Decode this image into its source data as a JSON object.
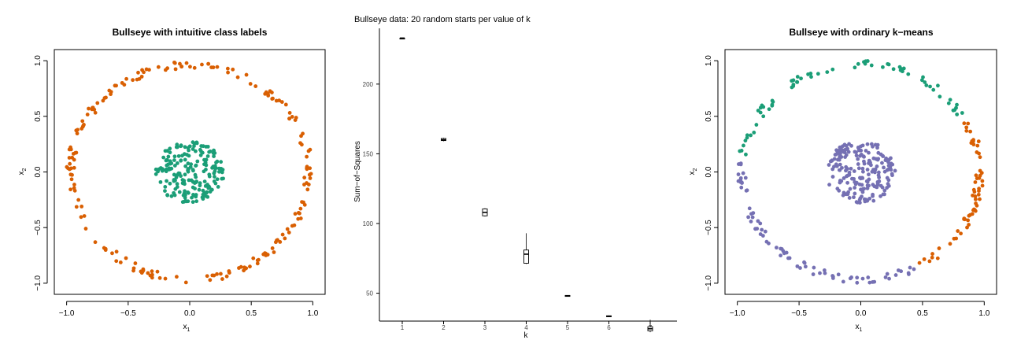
{
  "chart_data": [
    {
      "type": "scatter",
      "title": "Bullseye with intuitive class labels",
      "xlabel": "x",
      "xlabel_subscript": "1",
      "ylabel": "x",
      "ylabel_subscript": "2",
      "xlim": [
        -1.1,
        1.1
      ],
      "ylim": [
        -1.1,
        1.1
      ],
      "xticks": [
        "−1.0",
        "−0.5",
        "0.0",
        "0.5",
        "1.0"
      ],
      "yticks": [
        "−1.0",
        "−0.5",
        "0.0",
        "0.5",
        "1.0"
      ],
      "grid": false,
      "series": [
        {
          "color": "#d95f02",
          "shape": "ring",
          "radius": [
            0.93,
            1.0
          ],
          "n": 200
        },
        {
          "color": "#1b9e77",
          "shape": "disc",
          "radius": [
            0.0,
            0.28
          ],
          "n": 200
        }
      ]
    },
    {
      "type": "box",
      "title": "Bullseye data: 20 random starts per value of k",
      "xlabel": "k",
      "ylabel": "Sum−of−Squares",
      "categories": [
        "1",
        "2",
        "3",
        "4",
        "5",
        "6",
        "7"
      ],
      "yticks": [
        "50",
        "100",
        "150",
        "200"
      ],
      "ylim": [
        30,
        240
      ],
      "boxes": [
        {
          "k": "1",
          "min": 233,
          "q1": 233,
          "median": 233,
          "q3": 233,
          "max": 233
        },
        {
          "k": "2",
          "min": 159,
          "q1": 159.5,
          "median": 160,
          "q3": 161,
          "max": 161.5
        },
        {
          "k": "3",
          "min": 105,
          "q1": 105.5,
          "median": 108,
          "q3": 110.5,
          "max": 111
        },
        {
          "k": "4",
          "min": 71,
          "q1": 71.5,
          "median": 78,
          "q3": 81,
          "max": 93
        },
        {
          "k": "5",
          "min": 47.8,
          "q1": 48,
          "median": 48.2,
          "q3": 48.4,
          "max": 48.6
        },
        {
          "k": "6",
          "min": 33,
          "q1": 33.2,
          "median": 33.5,
          "q3": 33.8,
          "max": 34
        },
        {
          "k": "7",
          "min": 22,
          "q1": 23,
          "median": 24.5,
          "q3": 26,
          "max": 31
        }
      ]
    },
    {
      "type": "scatter",
      "title": "Bullseye with ordinary k−means",
      "xlabel": "x",
      "xlabel_subscript": "1",
      "ylabel": "x",
      "ylabel_subscript": "2",
      "xlim": [
        -1.1,
        1.1
      ],
      "ylim": [
        -1.1,
        1.1
      ],
      "xticks": [
        "−1.0",
        "−0.5",
        "0.0",
        "0.5",
        "1.0"
      ],
      "yticks": [
        "−1.0",
        "−0.5",
        "0.0",
        "0.5",
        "1.0"
      ],
      "grid": false,
      "series": [
        {
          "color": "#1b9e77",
          "shape": "ring-arc",
          "radius": [
            0.93,
            1.0
          ],
          "angle_range_deg": [
            30,
            175
          ],
          "n": 70
        },
        {
          "color": "#d95f02",
          "shape": "ring-arc",
          "radius": [
            0.93,
            1.0
          ],
          "angle_range_deg": [
            -60,
            30
          ],
          "n": 60
        },
        {
          "color": "#7570b3",
          "shape": "ring-arc",
          "radius": [
            0.93,
            1.0
          ],
          "angle_range_deg": [
            175,
            300
          ],
          "n": 75
        },
        {
          "color": "#7570b3",
          "shape": "disc",
          "radius": [
            0.0,
            0.28
          ],
          "n": 200
        }
      ]
    }
  ]
}
